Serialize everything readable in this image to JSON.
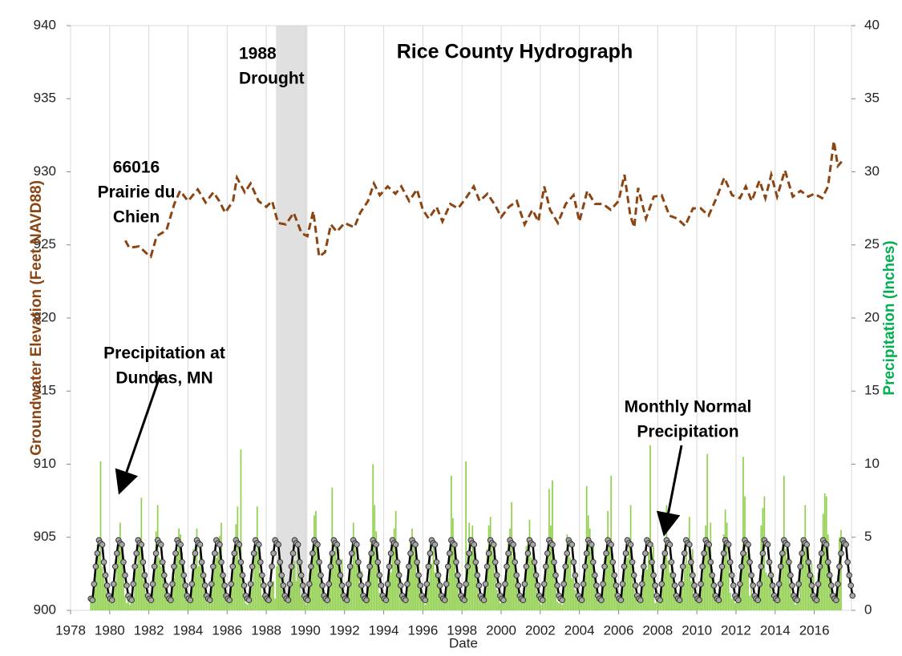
{
  "chart_data": {
    "type": "line",
    "title": "Rice County Hydrograph",
    "x_label": "Date",
    "y_label": "Groundwater Elevation (Feet NAVD88)",
    "y2_label": "Precipitation  (Inches)",
    "xlim": [
      1978,
      2017.9
    ],
    "xticks": [
      1978,
      1980,
      1982,
      1984,
      1986,
      1988,
      1990,
      1992,
      1994,
      1996,
      1998,
      2000,
      2002,
      2004,
      2006,
      2008,
      2010,
      2012,
      2014,
      2016
    ],
    "ylim": [
      900,
      940
    ],
    "yticks": [
      900,
      905,
      910,
      915,
      920,
      925,
      930,
      935,
      940
    ],
    "y2lim": [
      0,
      40
    ],
    "y2ticks": [
      0,
      5,
      10,
      15,
      20,
      25,
      30,
      35,
      40
    ],
    "grid": "x",
    "span": {
      "x": [
        1988.5,
        1990.1
      ],
      "label_lines": [
        "1988",
        "Drought"
      ],
      "color": "#e0e0e0"
    },
    "series": [
      {
        "type": "line",
        "label_lines": [
          "66016",
          "Prairie du",
          "Chien"
        ],
        "color": "#8b4513",
        "dashed": true,
        "x": [
          1980.8,
          1981.0,
          1981.5,
          1981.9,
          1982.1,
          1982.4,
          1982.9,
          1983.3,
          1983.6,
          1984.0,
          1984.5,
          1984.9,
          1985.3,
          1985.6,
          1985.9,
          1986.3,
          1986.5,
          1986.9,
          1987.2,
          1987.6,
          1988.0,
          1988.3,
          1988.6,
          1989.0,
          1989.4,
          1989.8,
          1990.1,
          1990.4,
          1990.7,
          1991.0,
          1991.3,
          1991.6,
          1992.0,
          1992.5,
          1992.8,
          1993.2,
          1993.5,
          1993.8,
          1994.2,
          1994.6,
          1994.9,
          1995.3,
          1995.7,
          1996.0,
          1996.3,
          1996.7,
          1997.0,
          1997.4,
          1997.8,
          1998.2,
          1998.6,
          1998.9,
          1999.3,
          1999.7,
          2000.0,
          2000.4,
          2000.8,
          2001.2,
          2001.6,
          2001.9,
          2002.2,
          2002.5,
          2002.9,
          2003.3,
          2003.7,
          2004.0,
          2004.4,
          2004.8,
          2005.2,
          2005.6,
          2006.0,
          2006.3,
          2006.6,
          2006.8,
          2007.0,
          2007.4,
          2007.8,
          2008.2,
          2008.6,
          2009.0,
          2009.4,
          2009.8,
          2010.2,
          2010.6,
          2011.0,
          2011.4,
          2011.8,
          2012.2,
          2012.5,
          2012.8,
          2013.2,
          2013.5,
          2013.8,
          2014.1,
          2014.5,
          2014.9,
          2015.3,
          2015.7,
          2016.0,
          2016.4,
          2016.7,
          2017.0,
          2017.2,
          2017.4
        ],
        "values": [
          925.3,
          924.8,
          924.9,
          924.4,
          924.2,
          925.6,
          926.0,
          927.8,
          928.7,
          928.0,
          928.8,
          927.9,
          928.6,
          928.0,
          927.2,
          928.0,
          929.6,
          928.6,
          929.2,
          928.0,
          927.6,
          928.0,
          926.5,
          926.4,
          927.2,
          925.8,
          925.6,
          927.3,
          924.2,
          924.5,
          926.4,
          925.9,
          926.5,
          926.2,
          927.2,
          928.0,
          929.2,
          928.4,
          929.0,
          928.5,
          929.0,
          928.0,
          928.8,
          927.4,
          926.8,
          927.6,
          926.6,
          927.8,
          927.5,
          928.2,
          929.0,
          928.0,
          928.5,
          927.7,
          926.9,
          927.6,
          928.0,
          926.4,
          927.4,
          926.6,
          929.0,
          927.4,
          926.5,
          927.8,
          928.4,
          926.6,
          928.7,
          927.8,
          927.8,
          927.4,
          928.0,
          929.8,
          927.0,
          926.2,
          928.9,
          926.8,
          928.3,
          928.4,
          927.0,
          926.8,
          926.3,
          927.5,
          927.5,
          927.0,
          928.2,
          929.6,
          928.4,
          928.2,
          929.0,
          928.0,
          929.4,
          928.2,
          929.8,
          928.3,
          930.1,
          928.3,
          928.7,
          928.3,
          928.5,
          928.2,
          929.0,
          932.1,
          930.4,
          930.7
        ]
      },
      {
        "type": "bar",
        "axis": "y2",
        "label_lines": [
          "Precipitation at",
          "Dundas, MN"
        ],
        "color": "#92d050",
        "years": [
          1979,
          1980,
          1981,
          1982,
          1983,
          1984,
          1985,
          1986,
          1987,
          1988,
          1989,
          1990,
          1991,
          1992,
          1993,
          1994,
          1995,
          1996,
          1997,
          1998,
          1999,
          2000,
          2001,
          2002,
          2003,
          2004,
          2005,
          2006,
          2007,
          2008,
          2009,
          2010,
          2011,
          2012,
          2013,
          2014,
          2015,
          2016,
          2017
        ],
        "monthly": [
          [
            0.6,
            0.9,
            2.2,
            2.8,
            4.5,
            4.0,
            10.2,
            3.0,
            2.5,
            1.8,
            1.2,
            0.7
          ],
          [
            0.5,
            0.6,
            1.5,
            2.0,
            3.5,
            5.0,
            6.0,
            4.2,
            3.8,
            1.0,
            0.5,
            0.8
          ],
          [
            0.4,
            1.2,
            1.0,
            3.5,
            2.8,
            4.6,
            5.0,
            7.7,
            2.6,
            2.0,
            1.1,
            0.6
          ],
          [
            1.0,
            0.5,
            2.4,
            3.1,
            5.4,
            7.2,
            3.6,
            3.0,
            2.8,
            3.2,
            2.0,
            1.2
          ],
          [
            0.6,
            0.8,
            2.6,
            2.2,
            3.6,
            4.0,
            5.6,
            5.2,
            4.0,
            3.4,
            1.6,
            1.1
          ],
          [
            0.7,
            0.9,
            1.6,
            4.2,
            3.2,
            5.6,
            3.0,
            4.1,
            3.6,
            2.6,
            1.3,
            0.9
          ],
          [
            0.5,
            0.6,
            2.0,
            3.4,
            4.2,
            3.6,
            4.0,
            5.1,
            6.0,
            2.2,
            2.5,
            0.8
          ],
          [
            0.6,
            0.7,
            1.8,
            3.6,
            4.4,
            5.9,
            7.1,
            3.2,
            11.0,
            3.0,
            1.2,
            0.5
          ],
          [
            0.4,
            0.5,
            2.5,
            1.6,
            4.4,
            3.8,
            7.1,
            4.0,
            2.4,
            1.0,
            1.5,
            0.9
          ],
          [
            0.8,
            0.6,
            1.6,
            1.8,
            2.0,
            0.8,
            3.0,
            3.6,
            3.0,
            1.5,
            2.4,
            0.7
          ],
          [
            0.5,
            0.6,
            1.4,
            1.6,
            3.0,
            3.4,
            2.0,
            4.8,
            2.5,
            1.0,
            1.2,
            0.6
          ],
          [
            0.4,
            0.5,
            2.6,
            2.8,
            4.2,
            6.5,
            6.8,
            4.6,
            3.2,
            2.0,
            1.6,
            0.8
          ],
          [
            0.6,
            0.7,
            2.0,
            4.0,
            8.4,
            4.0,
            4.6,
            3.6,
            4.2,
            2.6,
            3.5,
            0.9
          ],
          [
            0.5,
            0.8,
            1.8,
            2.6,
            3.0,
            6.0,
            4.8,
            3.4,
            3.8,
            1.5,
            2.7,
            1.0
          ],
          [
            0.6,
            0.5,
            1.6,
            3.8,
            4.6,
            10.0,
            7.2,
            5.4,
            3.0,
            1.2,
            1.4,
            0.7
          ],
          [
            0.5,
            0.6,
            1.4,
            3.0,
            2.6,
            4.8,
            5.6,
            6.8,
            3.0,
            3.2,
            2.1,
            0.8
          ],
          [
            0.7,
            0.5,
            2.1,
            3.2,
            4.8,
            5.6,
            4.8,
            3.8,
            2.6,
            3.4,
            1.8,
            0.6
          ],
          [
            0.9,
            0.4,
            1.5,
            1.6,
            4.2,
            3.2,
            4.4,
            2.6,
            2.8,
            3.0,
            2.5,
            1.1
          ],
          [
            0.8,
            0.6,
            1.7,
            2.2,
            3.6,
            9.2,
            6.3,
            4.2,
            2.6,
            2.0,
            1.0,
            0.7
          ],
          [
            0.5,
            0.7,
            10.2,
            3.0,
            6.0,
            4.0,
            5.8,
            4.4,
            3.2,
            3.0,
            1.0,
            0.6
          ],
          [
            0.9,
            0.6,
            1.6,
            4.2,
            5.8,
            6.4,
            4.6,
            3.8,
            2.4,
            1.4,
            0.9,
            0.5
          ],
          [
            0.6,
            0.8,
            1.8,
            2.4,
            4.6,
            5.6,
            7.4,
            3.6,
            4.0,
            2.0,
            2.2,
            1.0
          ],
          [
            0.7,
            0.9,
            1.2,
            4.4,
            5.0,
            6.2,
            3.6,
            4.0,
            3.4,
            2.2,
            1.2,
            0.6
          ],
          [
            0.4,
            0.6,
            1.6,
            3.2,
            4.0,
            8.3,
            5.8,
            8.9,
            3.8,
            2.0,
            0.6,
            0.5
          ],
          [
            0.5,
            0.4,
            1.6,
            2.8,
            5.2,
            4.2,
            3.6,
            2.2,
            3.0,
            1.4,
            1.2,
            0.9
          ],
          [
            0.6,
            0.9,
            2.2,
            2.4,
            8.5,
            6.5,
            5.6,
            4.0,
            4.4,
            2.4,
            1.8,
            0.8
          ],
          [
            0.8,
            0.7,
            1.4,
            3.6,
            4.2,
            6.8,
            4.6,
            9.2,
            3.8,
            2.6,
            1.6,
            0.7
          ],
          [
            0.7,
            0.5,
            2.0,
            3.4,
            4.0,
            3.6,
            4.4,
            7.2,
            3.0,
            1.6,
            1.0,
            1.2
          ],
          [
            0.6,
            0.9,
            2.4,
            2.6,
            3.4,
            2.8,
            4.0,
            11.3,
            3.6,
            4.4,
            0.5,
            1.0
          ],
          [
            0.5,
            0.6,
            1.8,
            3.8,
            4.2,
            7.2,
            3.4,
            2.6,
            3.8,
            2.6,
            1.4,
            1.0
          ],
          [
            0.6,
            0.7,
            2.0,
            1.8,
            2.8,
            4.6,
            3.2,
            6.4,
            2.0,
            4.2,
            0.8,
            1.4
          ],
          [
            0.7,
            0.6,
            1.6,
            2.4,
            3.6,
            5.8,
            10.7,
            4.2,
            6.0,
            2.8,
            2.4,
            1.2
          ],
          [
            0.8,
            1.2,
            2.2,
            3.2,
            5.2,
            6.9,
            6.0,
            3.4,
            1.2,
            0.8,
            1.0,
            0.5
          ],
          [
            0.6,
            1.0,
            2.6,
            3.6,
            10.5,
            7.8,
            4.0,
            3.8,
            1.0,
            2.4,
            1.1,
            0.8
          ],
          [
            0.8,
            0.9,
            1.6,
            5.8,
            7.0,
            7.8,
            2.6,
            2.4,
            2.2,
            3.0,
            0.8,
            1.0
          ],
          [
            0.6,
            0.7,
            1.4,
            4.0,
            3.6,
            9.2,
            4.2,
            3.6,
            3.8,
            1.6,
            1.2,
            1.0
          ],
          [
            0.4,
            0.5,
            0.8,
            2.6,
            4.8,
            4.2,
            7.2,
            4.8,
            4.6,
            2.0,
            3.2,
            2.4
          ],
          [
            0.7,
            1.0,
            2.6,
            3.4,
            4.0,
            6.6,
            8.0,
            7.8,
            5.2,
            3.0,
            2.4,
            1.4
          ],
          [
            0.8,
            1.2,
            2.4,
            5.0,
            5.5
          ]
        ]
      },
      {
        "type": "line",
        "axis": "y2",
        "label_lines": [
          "Monthly Normal",
          "Precipitation"
        ],
        "color": "#000000",
        "marker_color": "#a6a6a6",
        "values": [
          0.8,
          0.7,
          1.8,
          3.0,
          3.9,
          4.8,
          4.6,
          4.5,
          3.3,
          2.4,
          1.7,
          1.0
        ]
      }
    ]
  }
}
